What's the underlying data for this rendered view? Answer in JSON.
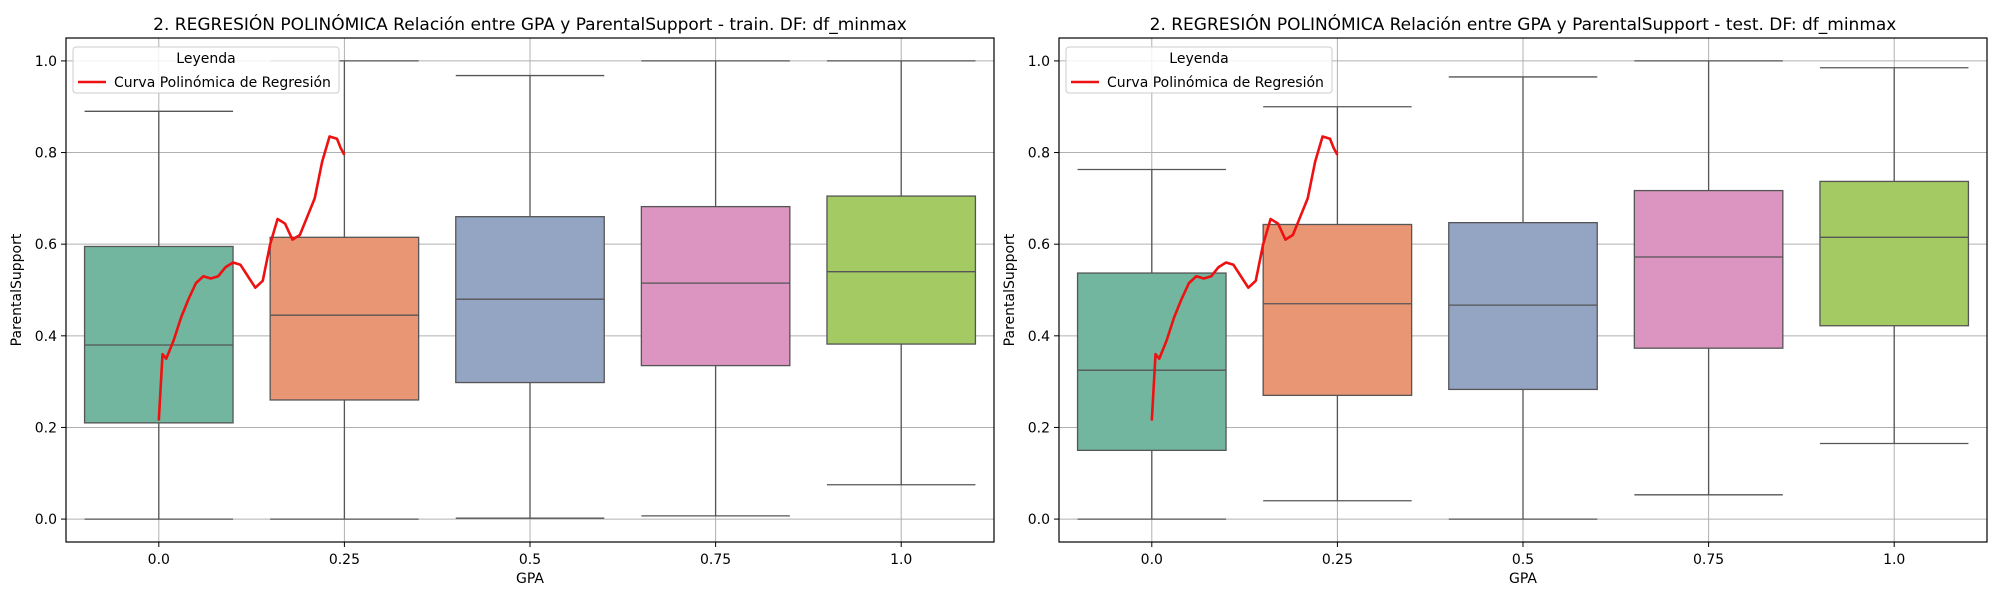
{
  "chart_data": [
    {
      "type": "box",
      "title": "2. REGRESIÓN POLINÓMICA Relación entre GPA y ParentalSupport - train. DF: df_minmax",
      "xlabel": "GPA",
      "ylabel": "ParentalSupport",
      "categories": [
        "0.0",
        "0.25",
        "0.5",
        "0.75",
        "1.0"
      ],
      "ylim": [
        -0.05,
        1.05
      ],
      "yticks": [
        "0.0",
        "0.2",
        "0.4",
        "0.6",
        "0.8",
        "1.0"
      ],
      "grid": true,
      "legend": {
        "title": "Leyenda",
        "placement": "top-left",
        "entries": [
          "Curva Polinómica de Regresión"
        ]
      },
      "boxes": [
        {
          "category": "0.0",
          "whisker_low": 0.0,
          "q1": 0.21,
          "median": 0.38,
          "q3": 0.595,
          "whisker_high": 0.89
        },
        {
          "category": "0.25",
          "whisker_low": 0.0,
          "q1": 0.26,
          "median": 0.445,
          "q3": 0.615,
          "whisker_high": 1.0
        },
        {
          "category": "0.5",
          "whisker_low": 0.002,
          "q1": 0.298,
          "median": 0.48,
          "q3": 0.66,
          "whisker_high": 0.968
        },
        {
          "category": "0.75",
          "whisker_low": 0.007,
          "q1": 0.335,
          "median": 0.515,
          "q3": 0.682,
          "whisker_high": 1.0
        },
        {
          "category": "1.0",
          "whisker_low": 0.075,
          "q1": 0.382,
          "median": 0.54,
          "q3": 0.705,
          "whisker_high": 1.0
        }
      ],
      "regression_curve": {
        "name": "Curva Polinómica de Regresión",
        "x": [
          0.0,
          0.005,
          0.01,
          0.02,
          0.03,
          0.04,
          0.05,
          0.06,
          0.07,
          0.08,
          0.09,
          0.1,
          0.11,
          0.12,
          0.13,
          0.14,
          0.15,
          0.16,
          0.17,
          0.18,
          0.19,
          0.2,
          0.21,
          0.22,
          0.23,
          0.24,
          0.245,
          0.25
        ],
        "y": [
          0.215,
          0.36,
          0.35,
          0.39,
          0.44,
          0.48,
          0.515,
          0.53,
          0.525,
          0.53,
          0.55,
          0.56,
          0.555,
          0.53,
          0.505,
          0.52,
          0.6,
          0.655,
          0.645,
          0.61,
          0.62,
          0.66,
          0.7,
          0.78,
          0.835,
          0.83,
          0.81,
          0.795
        ]
      }
    },
    {
      "type": "box",
      "title": "2. REGRESIÓN POLINÓMICA Relación entre GPA y ParentalSupport - test. DF: df_minmax",
      "xlabel": "GPA",
      "ylabel": "ParentalSupport",
      "categories": [
        "0.0",
        "0.25",
        "0.5",
        "0.75",
        "1.0"
      ],
      "ylim": [
        -0.05,
        1.05
      ],
      "yticks": [
        "0.0",
        "0.2",
        "0.4",
        "0.6",
        "0.8",
        "1.0"
      ],
      "grid": true,
      "legend": {
        "title": "Leyenda",
        "placement": "top-left",
        "entries": [
          "Curva Polinómica de Regresión"
        ]
      },
      "boxes": [
        {
          "category": "0.0",
          "whisker_low": 0.0,
          "q1": 0.15,
          "median": 0.325,
          "q3": 0.537,
          "whisker_high": 0.763
        },
        {
          "category": "0.25",
          "whisker_low": 0.04,
          "q1": 0.27,
          "median": 0.47,
          "q3": 0.643,
          "whisker_high": 0.9
        },
        {
          "category": "0.5",
          "whisker_low": 0.0,
          "q1": 0.283,
          "median": 0.467,
          "q3": 0.647,
          "whisker_high": 0.965
        },
        {
          "category": "0.75",
          "whisker_low": 0.053,
          "q1": 0.373,
          "median": 0.572,
          "q3": 0.717,
          "whisker_high": 1.0
        },
        {
          "category": "1.0",
          "whisker_low": 0.165,
          "q1": 0.422,
          "median": 0.615,
          "q3": 0.737,
          "whisker_high": 0.985
        }
      ],
      "regression_curve": {
        "name": "Curva Polinómica de Regresión",
        "x": [
          0.0,
          0.005,
          0.01,
          0.02,
          0.03,
          0.04,
          0.05,
          0.06,
          0.07,
          0.08,
          0.09,
          0.1,
          0.11,
          0.12,
          0.13,
          0.14,
          0.15,
          0.16,
          0.17,
          0.18,
          0.19,
          0.2,
          0.21,
          0.22,
          0.23,
          0.24,
          0.245,
          0.25
        ],
        "y": [
          0.215,
          0.36,
          0.35,
          0.39,
          0.44,
          0.48,
          0.515,
          0.53,
          0.525,
          0.53,
          0.55,
          0.56,
          0.555,
          0.53,
          0.505,
          0.52,
          0.6,
          0.655,
          0.645,
          0.61,
          0.62,
          0.66,
          0.7,
          0.78,
          0.835,
          0.83,
          0.81,
          0.795
        ]
      }
    }
  ],
  "colors": {
    "boxes": [
      "#73b6a0",
      "#e99674",
      "#94a5c4",
      "#dc94c0",
      "#a3ca63"
    ],
    "box_edge": "#555555",
    "curve": "#ee1111",
    "grid": "#b0b0b0"
  }
}
